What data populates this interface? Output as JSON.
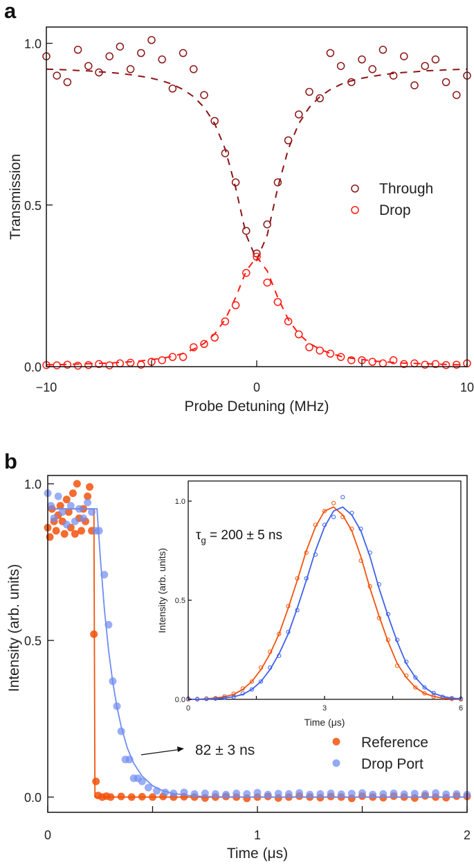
{
  "chart_data": [
    {
      "panel_label": "a",
      "type": "scatter",
      "xlabel": "Probe Detuning (MHz)",
      "ylabel": "Transmission",
      "xlim": [
        -10,
        10
      ],
      "ylim": [
        0,
        1.05
      ],
      "xticks": [
        -10,
        0,
        10
      ],
      "xtick_labels": [
        "−10",
        "0",
        "10"
      ],
      "yticks": [
        0,
        0.5,
        1.0
      ],
      "ytick_labels": [
        "0.0",
        "0.5",
        "1.0"
      ],
      "grid": false,
      "legend_placement": "right",
      "x": [
        -10,
        -9.5,
        -9,
        -8.5,
        -8,
        -7.5,
        -7,
        -6.5,
        -6,
        -5.5,
        -5,
        -4.5,
        -4,
        -3.5,
        -3,
        -2.5,
        -2,
        -1.5,
        -1,
        -0.5,
        0,
        0.5,
        1,
        1.5,
        2,
        2.5,
        3,
        3.5,
        4,
        4.5,
        5,
        5.5,
        6,
        6.5,
        7,
        7.5,
        8,
        8.5,
        9,
        9.5,
        10
      ],
      "series": [
        {
          "name": "Through",
          "color": "#8b1414",
          "marker": "open-circle",
          "values": [
            0.96,
            0.9,
            0.88,
            0.98,
            0.93,
            0.91,
            0.96,
            0.99,
            0.92,
            0.97,
            1.01,
            0.95,
            0.86,
            0.97,
            0.92,
            0.84,
            0.76,
            0.66,
            0.57,
            0.42,
            0.35,
            0.44,
            0.57,
            0.7,
            0.78,
            0.85,
            0.83,
            0.97,
            0.93,
            0.88,
            0.95,
            0.92,
            0.98,
            0.9,
            0.96,
            0.87,
            0.93,
            0.95,
            0.88,
            0.84,
            0.9
          ],
          "fit": [
            0.92,
            0.919,
            0.918,
            0.916,
            0.915,
            0.912,
            0.91,
            0.907,
            0.903,
            0.898,
            0.892,
            0.884,
            0.873,
            0.857,
            0.835,
            0.802,
            0.752,
            0.673,
            0.553,
            0.407,
            0.33,
            0.407,
            0.553,
            0.673,
            0.752,
            0.802,
            0.835,
            0.857,
            0.873,
            0.884,
            0.892,
            0.898,
            0.903,
            0.907,
            0.91,
            0.912,
            0.915,
            0.916,
            0.918,
            0.919,
            0.92
          ]
        },
        {
          "name": "Drop",
          "color": "#ff1a12",
          "marker": "open-circle",
          "values": [
            0.005,
            0.004,
            0.006,
            0.003,
            0.005,
            0.008,
            0.004,
            0.01,
            0.012,
            0.006,
            0.015,
            0.02,
            0.03,
            0.03,
            0.06,
            0.07,
            0.09,
            0.14,
            0.19,
            0.29,
            0.34,
            0.26,
            0.2,
            0.14,
            0.1,
            0.06,
            0.05,
            0.04,
            0.03,
            0.02,
            0.02,
            0.015,
            0.01,
            0.02,
            0.008,
            0.01,
            0.006,
            0.008,
            0.005,
            0.006,
            0.01
          ],
          "fit": [
            0.006,
            0.006,
            0.007,
            0.008,
            0.009,
            0.01,
            0.011,
            0.013,
            0.015,
            0.018,
            0.022,
            0.026,
            0.032,
            0.041,
            0.054,
            0.072,
            0.101,
            0.146,
            0.214,
            0.296,
            0.34,
            0.296,
            0.214,
            0.146,
            0.101,
            0.072,
            0.054,
            0.041,
            0.032,
            0.026,
            0.022,
            0.018,
            0.015,
            0.013,
            0.011,
            0.01,
            0.009,
            0.008,
            0.007,
            0.006,
            0.006
          ]
        }
      ]
    },
    {
      "panel_label": "b",
      "type": "scatter",
      "xlabel": "Time (μs)",
      "ylabel": "Intensity (arb. units)",
      "xlim": [
        0,
        2
      ],
      "ylim": [
        -0.02,
        1.04
      ],
      "xticks": [
        0,
        1,
        2
      ],
      "xtick_labels": [
        "0",
        "1",
        "2"
      ],
      "yticks": [
        0,
        0.5,
        1.0
      ],
      "ytick_labels": [
        "0.0",
        "0.5",
        "1.0"
      ],
      "grid": false,
      "legend_placement": "bottom-right",
      "annotation": "82 ± 3 ns",
      "series": [
        {
          "name": "Reference",
          "color": "#f2520a",
          "marker": "filled-circle",
          "points": [
            [
              0,
              0.86
            ],
            [
              0.01,
              0.83
            ],
            [
              0.02,
              0.92
            ],
            [
              0.03,
              0.88
            ],
            [
              0.04,
              0.85
            ],
            [
              0.05,
              0.9
            ],
            [
              0.06,
              0.93
            ],
            [
              0.07,
              0.88
            ],
            [
              0.08,
              0.84
            ],
            [
              0.09,
              0.95
            ],
            [
              0.1,
              0.91
            ],
            [
              0.11,
              0.86
            ],
            [
              0.12,
              0.97
            ],
            [
              0.13,
              0.84
            ],
            [
              0.14,
              1.0
            ],
            [
              0.15,
              0.89
            ],
            [
              0.16,
              0.85
            ],
            [
              0.17,
              0.92
            ],
            [
              0.18,
              0.88
            ],
            [
              0.19,
              0.96
            ],
            [
              0.2,
              0.99
            ],
            [
              0.21,
              0.85
            ],
            [
              0.22,
              0.52
            ],
            [
              0.23,
              0.05
            ],
            [
              0.24,
              0.005
            ],
            [
              0.26,
              0.0
            ],
            [
              0.28,
              0.003
            ],
            [
              0.3,
              0.0
            ],
            [
              0.35,
              0.002
            ],
            [
              0.4,
              0.0
            ],
            [
              0.45,
              0.001
            ],
            [
              0.5,
              0.0
            ],
            [
              0.55,
              0.002
            ],
            [
              0.6,
              0.0
            ],
            [
              0.65,
              0.001
            ],
            [
              0.7,
              0.0
            ],
            [
              0.75,
              -0.003
            ],
            [
              0.8,
              0.0
            ],
            [
              0.85,
              0.002
            ],
            [
              0.9,
              0.0
            ],
            [
              0.95,
              -0.004
            ],
            [
              1.0,
              0.0
            ],
            [
              1.05,
              0.002
            ],
            [
              1.1,
              -0.003
            ],
            [
              1.15,
              0.0
            ],
            [
              1.2,
              0.003
            ],
            [
              1.25,
              0.0
            ],
            [
              1.3,
              -0.002
            ],
            [
              1.35,
              0.002
            ],
            [
              1.4,
              0.0
            ],
            [
              1.45,
              -0.004
            ],
            [
              1.5,
              0.003
            ],
            [
              1.55,
              0.0
            ],
            [
              1.6,
              -0.002
            ],
            [
              1.65,
              0.003
            ],
            [
              1.7,
              0.0
            ],
            [
              1.75,
              -0.003
            ],
            [
              1.8,
              0.004
            ],
            [
              1.85,
              0.0
            ],
            [
              1.9,
              -0.002
            ],
            [
              1.95,
              0.003
            ],
            [
              2.0,
              0.002
            ]
          ],
          "fit": [
            [
              0,
              0.92
            ],
            [
              0.22,
              0.92
            ],
            [
              0.225,
              0
            ],
            [
              2,
              0
            ]
          ]
        },
        {
          "name": "Drop Port",
          "color": "#6f8cf2",
          "marker": "filled-circle",
          "points": [
            [
              0,
              0.97
            ],
            [
              0.015,
              0.93
            ],
            [
              0.03,
              0.89
            ],
            [
              0.05,
              0.96
            ],
            [
              0.07,
              0.91
            ],
            [
              0.09,
              0.87
            ],
            [
              0.11,
              0.93
            ],
            [
              0.13,
              0.88
            ],
            [
              0.15,
              0.92
            ],
            [
              0.17,
              0.89
            ],
            [
              0.19,
              0.94
            ],
            [
              0.21,
              0.91
            ],
            [
              0.23,
              0.85
            ],
            [
              0.245,
              0.85
            ],
            [
              0.27,
              0.71
            ],
            [
              0.29,
              0.55
            ],
            [
              0.31,
              0.37
            ],
            [
              0.33,
              0.29
            ],
            [
              0.35,
              0.21
            ],
            [
              0.37,
              0.12
            ],
            [
              0.39,
              0.12
            ],
            [
              0.41,
              0.06
            ],
            [
              0.43,
              0.06
            ],
            [
              0.45,
              0.05
            ],
            [
              0.48,
              0.03
            ],
            [
              0.52,
              0.02
            ],
            [
              0.56,
              0.015
            ],
            [
              0.6,
              0.012
            ],
            [
              0.65,
              0.015
            ],
            [
              0.7,
              0.01
            ],
            [
              0.75,
              0.012
            ],
            [
              0.8,
              0.01
            ],
            [
              0.85,
              0.008
            ],
            [
              0.9,
              0.012
            ],
            [
              0.95,
              0.01
            ],
            [
              1.0,
              0.014
            ],
            [
              1.05,
              0.008
            ],
            [
              1.1,
              0.011
            ],
            [
              1.15,
              0.01
            ],
            [
              1.2,
              0.013
            ],
            [
              1.25,
              0.008
            ],
            [
              1.3,
              0.01
            ],
            [
              1.35,
              0.012
            ],
            [
              1.4,
              0.009
            ],
            [
              1.45,
              0.011
            ],
            [
              1.5,
              0.013
            ],
            [
              1.55,
              0.008
            ],
            [
              1.6,
              0.01
            ],
            [
              1.65,
              0.012
            ],
            [
              1.7,
              0.009
            ],
            [
              1.75,
              0.011
            ],
            [
              1.8,
              0.01
            ],
            [
              1.85,
              0.013
            ],
            [
              1.9,
              0.009
            ],
            [
              1.95,
              0.01
            ],
            [
              2.0,
              0.008
            ]
          ],
          "fit": [
            [
              0,
              0.92
            ],
            [
              0.235,
              0.92
            ],
            [
              0.25,
              0.77
            ],
            [
              0.27,
              0.601
            ],
            [
              0.29,
              0.468
            ],
            [
              0.31,
              0.368
            ],
            [
              0.33,
              0.288
            ],
            [
              0.35,
              0.225
            ],
            [
              0.38,
              0.156
            ],
            [
              0.41,
              0.108
            ],
            [
              0.45,
              0.067
            ],
            [
              0.5,
              0.036
            ],
            [
              0.55,
              0.02
            ],
            [
              0.6,
              0.011
            ],
            [
              0.7,
              0.003
            ],
            [
              0.8,
              0.001
            ],
            [
              1.0,
              0
            ],
            [
              2.0,
              0
            ]
          ]
        }
      ]
    },
    {
      "panel_label": "b-inset",
      "type": "scatter",
      "xlabel": "Time (μs)",
      "ylabel": "Intensity (arb. units)",
      "xlim": [
        0,
        6
      ],
      "ylim": [
        0,
        1.1
      ],
      "xticks": [
        0,
        3,
        6
      ],
      "xtick_labels": [
        "0",
        "3",
        "6"
      ],
      "yticks": [
        0,
        0.5,
        1.0
      ],
      "ytick_labels": [
        "0.0",
        "0.5",
        "1.0"
      ],
      "annotation": "τg = 200 ± 5 ns",
      "annotation_main": "τ",
      "annotation_sub": "g",
      "annotation_rest": " = 200 ± 5 ns",
      "x": [
        0,
        0.2,
        0.4,
        0.6,
        0.8,
        1.0,
        1.2,
        1.4,
        1.6,
        1.8,
        2.0,
        2.2,
        2.4,
        2.6,
        2.8,
        3.0,
        3.2,
        3.4,
        3.6,
        3.8,
        4.0,
        4.2,
        4.4,
        4.6,
        4.8,
        5.0,
        5.2,
        5.4,
        5.6,
        5.8,
        6.0
      ],
      "series": [
        {
          "name": "Reference",
          "color": "#f2520a",
          "marker": "open-circle",
          "values": [
            0.0,
            0.002,
            0.004,
            0.006,
            0.015,
            0.028,
            0.055,
            0.09,
            0.16,
            0.24,
            0.33,
            0.47,
            0.61,
            0.74,
            0.88,
            0.95,
            0.99,
            0.92,
            0.86,
            0.7,
            0.57,
            0.41,
            0.3,
            0.17,
            0.12,
            0.06,
            0.03,
            0.014,
            0.007,
            0.002,
            0.0
          ],
          "fit": [
            0.0,
            0.0,
            0.003,
            0.007,
            0.013,
            0.025,
            0.05,
            0.09,
            0.15,
            0.23,
            0.33,
            0.46,
            0.6,
            0.75,
            0.87,
            0.95,
            0.97,
            0.93,
            0.85,
            0.72,
            0.56,
            0.42,
            0.29,
            0.18,
            0.11,
            0.06,
            0.03,
            0.015,
            0.006,
            0.003,
            0.001
          ]
        },
        {
          "name": "Drop Port",
          "color": "#3d60ea",
          "marker": "open-circle",
          "values": [
            0.003,
            0.0,
            0.002,
            0.004,
            0.008,
            0.012,
            0.03,
            0.05,
            0.09,
            0.16,
            0.22,
            0.34,
            0.45,
            0.61,
            0.73,
            0.88,
            0.92,
            1.02,
            0.94,
            0.86,
            0.74,
            0.58,
            0.43,
            0.3,
            0.19,
            0.11,
            0.06,
            0.032,
            0.013,
            0.006,
            0.003
          ],
          "fit": [
            0.0,
            0.0,
            0.0,
            0.003,
            0.007,
            0.013,
            0.025,
            0.05,
            0.09,
            0.15,
            0.23,
            0.33,
            0.46,
            0.6,
            0.75,
            0.87,
            0.95,
            0.97,
            0.93,
            0.85,
            0.72,
            0.56,
            0.42,
            0.29,
            0.18,
            0.11,
            0.06,
            0.03,
            0.015,
            0.006,
            0.003
          ]
        }
      ]
    }
  ]
}
